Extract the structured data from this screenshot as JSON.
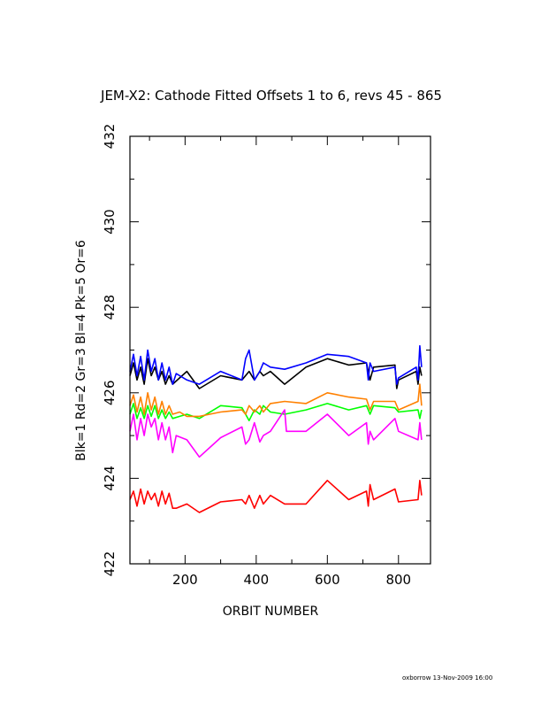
{
  "chart_data": {
    "type": "line",
    "title": "JEM-X2: Cathode Fitted Offsets 1 to 6, revs 45 - 865",
    "xlabel": "ORBIT NUMBER",
    "ylabel": "Blk=1 Rd=2 Gr=3 Bl=4 Pk=5 Or=6",
    "xlim": [
      45,
      890
    ],
    "ylim": [
      422,
      432
    ],
    "xticks": [
      200,
      400,
      600,
      800
    ],
    "yticks": [
      422,
      424,
      426,
      428,
      430,
      432
    ],
    "grid": false,
    "series": [
      {
        "name": "Blk=1",
        "color": "#000000",
        "x": [
          45,
          55,
          65,
          75,
          85,
          95,
          105,
          115,
          125,
          135,
          145,
          155,
          165,
          185,
          205,
          240,
          300,
          360,
          380,
          395,
          410,
          420,
          440,
          480,
          540,
          600,
          660,
          710,
          720,
          730,
          790,
          795,
          800,
          850,
          855,
          860,
          865
        ],
        "y": [
          426.4,
          426.7,
          426.3,
          426.6,
          426.2,
          426.8,
          426.4,
          426.6,
          426.3,
          426.5,
          426.2,
          426.4,
          426.2,
          426.35,
          426.5,
          426.1,
          426.4,
          426.3,
          426.5,
          426.3,
          426.5,
          426.4,
          426.5,
          426.2,
          426.6,
          426.8,
          426.65,
          426.7,
          426.3,
          426.6,
          426.65,
          426.1,
          426.3,
          426.5,
          426.2,
          426.6,
          426.4
        ]
      },
      {
        "name": "Rd=2",
        "color": "#ff0000",
        "x": [
          45,
          55,
          65,
          75,
          85,
          95,
          105,
          115,
          125,
          135,
          145,
          155,
          165,
          175,
          205,
          240,
          300,
          360,
          370,
          380,
          395,
          410,
          420,
          440,
          480,
          540,
          600,
          660,
          710,
          715,
          720,
          730,
          790,
          800,
          855,
          860,
          865
        ],
        "y": [
          423.5,
          423.7,
          423.35,
          423.75,
          423.4,
          423.7,
          423.5,
          423.65,
          423.35,
          423.7,
          423.4,
          423.65,
          423.3,
          423.3,
          423.4,
          423.2,
          423.45,
          423.5,
          423.4,
          423.6,
          423.3,
          423.6,
          423.4,
          423.6,
          423.4,
          423.4,
          423.95,
          423.5,
          423.7,
          423.35,
          423.85,
          423.5,
          423.75,
          423.45,
          423.5,
          423.95,
          423.6
        ]
      },
      {
        "name": "Gr=3",
        "color": "#00ff00",
        "x": [
          45,
          55,
          65,
          75,
          85,
          95,
          105,
          115,
          125,
          135,
          145,
          155,
          165,
          185,
          205,
          240,
          300,
          360,
          370,
          380,
          395,
          410,
          420,
          440,
          480,
          540,
          600,
          660,
          710,
          720,
          730,
          790,
          800,
          855,
          860,
          865
        ],
        "y": [
          425.5,
          425.75,
          425.4,
          425.65,
          425.4,
          425.7,
          425.45,
          425.7,
          425.4,
          425.6,
          425.4,
          425.55,
          425.4,
          425.45,
          425.5,
          425.4,
          425.7,
          425.65,
          425.5,
          425.35,
          425.6,
          425.5,
          425.7,
          425.55,
          425.5,
          425.6,
          425.75,
          425.6,
          425.7,
          425.5,
          425.7,
          425.65,
          425.55,
          425.6,
          425.4,
          425.6
        ]
      },
      {
        "name": "Bl=4",
        "color": "#0000ff",
        "x": [
          45,
          55,
          65,
          75,
          85,
          95,
          105,
          115,
          125,
          135,
          145,
          155,
          165,
          175,
          205,
          240,
          300,
          360,
          370,
          380,
          395,
          410,
          420,
          440,
          480,
          540,
          600,
          660,
          710,
          715,
          720,
          730,
          790,
          795,
          800,
          850,
          855,
          860,
          865
        ],
        "y": [
          426.5,
          426.9,
          426.4,
          426.85,
          426.3,
          427.0,
          426.5,
          426.8,
          426.3,
          426.7,
          426.3,
          426.6,
          426.2,
          426.45,
          426.3,
          426.2,
          426.5,
          426.3,
          426.8,
          427.0,
          426.3,
          426.5,
          426.7,
          426.6,
          426.55,
          426.7,
          426.9,
          426.85,
          426.7,
          426.3,
          426.7,
          426.5,
          426.6,
          426.2,
          426.35,
          426.6,
          426.3,
          427.1,
          426.6
        ]
      },
      {
        "name": "Pk=5",
        "color": "#ff00ff",
        "x": [
          45,
          55,
          65,
          75,
          85,
          95,
          105,
          115,
          125,
          135,
          145,
          155,
          165,
          175,
          205,
          240,
          300,
          360,
          370,
          380,
          395,
          410,
          420,
          440,
          480,
          485,
          540,
          600,
          660,
          710,
          715,
          720,
          730,
          790,
          800,
          855,
          860,
          865
        ],
        "y": [
          425.1,
          425.5,
          424.9,
          425.4,
          425.0,
          425.5,
          425.2,
          425.4,
          424.9,
          425.3,
          424.9,
          425.2,
          424.6,
          425.0,
          424.9,
          424.5,
          424.95,
          425.2,
          424.8,
          424.9,
          425.3,
          424.85,
          425.0,
          425.1,
          425.6,
          425.1,
          425.1,
          425.5,
          425.0,
          425.3,
          424.8,
          425.1,
          424.9,
          425.4,
          425.1,
          424.9,
          425.3,
          424.9
        ]
      },
      {
        "name": "Or=6",
        "color": "#ff8000",
        "x": [
          45,
          55,
          65,
          75,
          85,
          95,
          105,
          115,
          125,
          135,
          145,
          155,
          165,
          185,
          205,
          240,
          300,
          360,
          370,
          380,
          395,
          410,
          420,
          440,
          480,
          540,
          600,
          660,
          710,
          720,
          730,
          790,
          800,
          855,
          860,
          865
        ],
        "y": [
          425.7,
          425.95,
          425.55,
          425.9,
          425.5,
          426.0,
          425.6,
          425.9,
          425.5,
          425.8,
          425.5,
          425.7,
          425.5,
          425.55,
          425.45,
          425.45,
          425.55,
          425.6,
          425.5,
          425.7,
          425.55,
          425.7,
          425.55,
          425.75,
          425.8,
          425.75,
          426.0,
          425.9,
          425.85,
          425.6,
          425.8,
          425.8,
          425.6,
          425.8,
          426.2,
          425.7
        ]
      }
    ]
  },
  "footer": "oxborrow 13-Nov-2009 16:00"
}
